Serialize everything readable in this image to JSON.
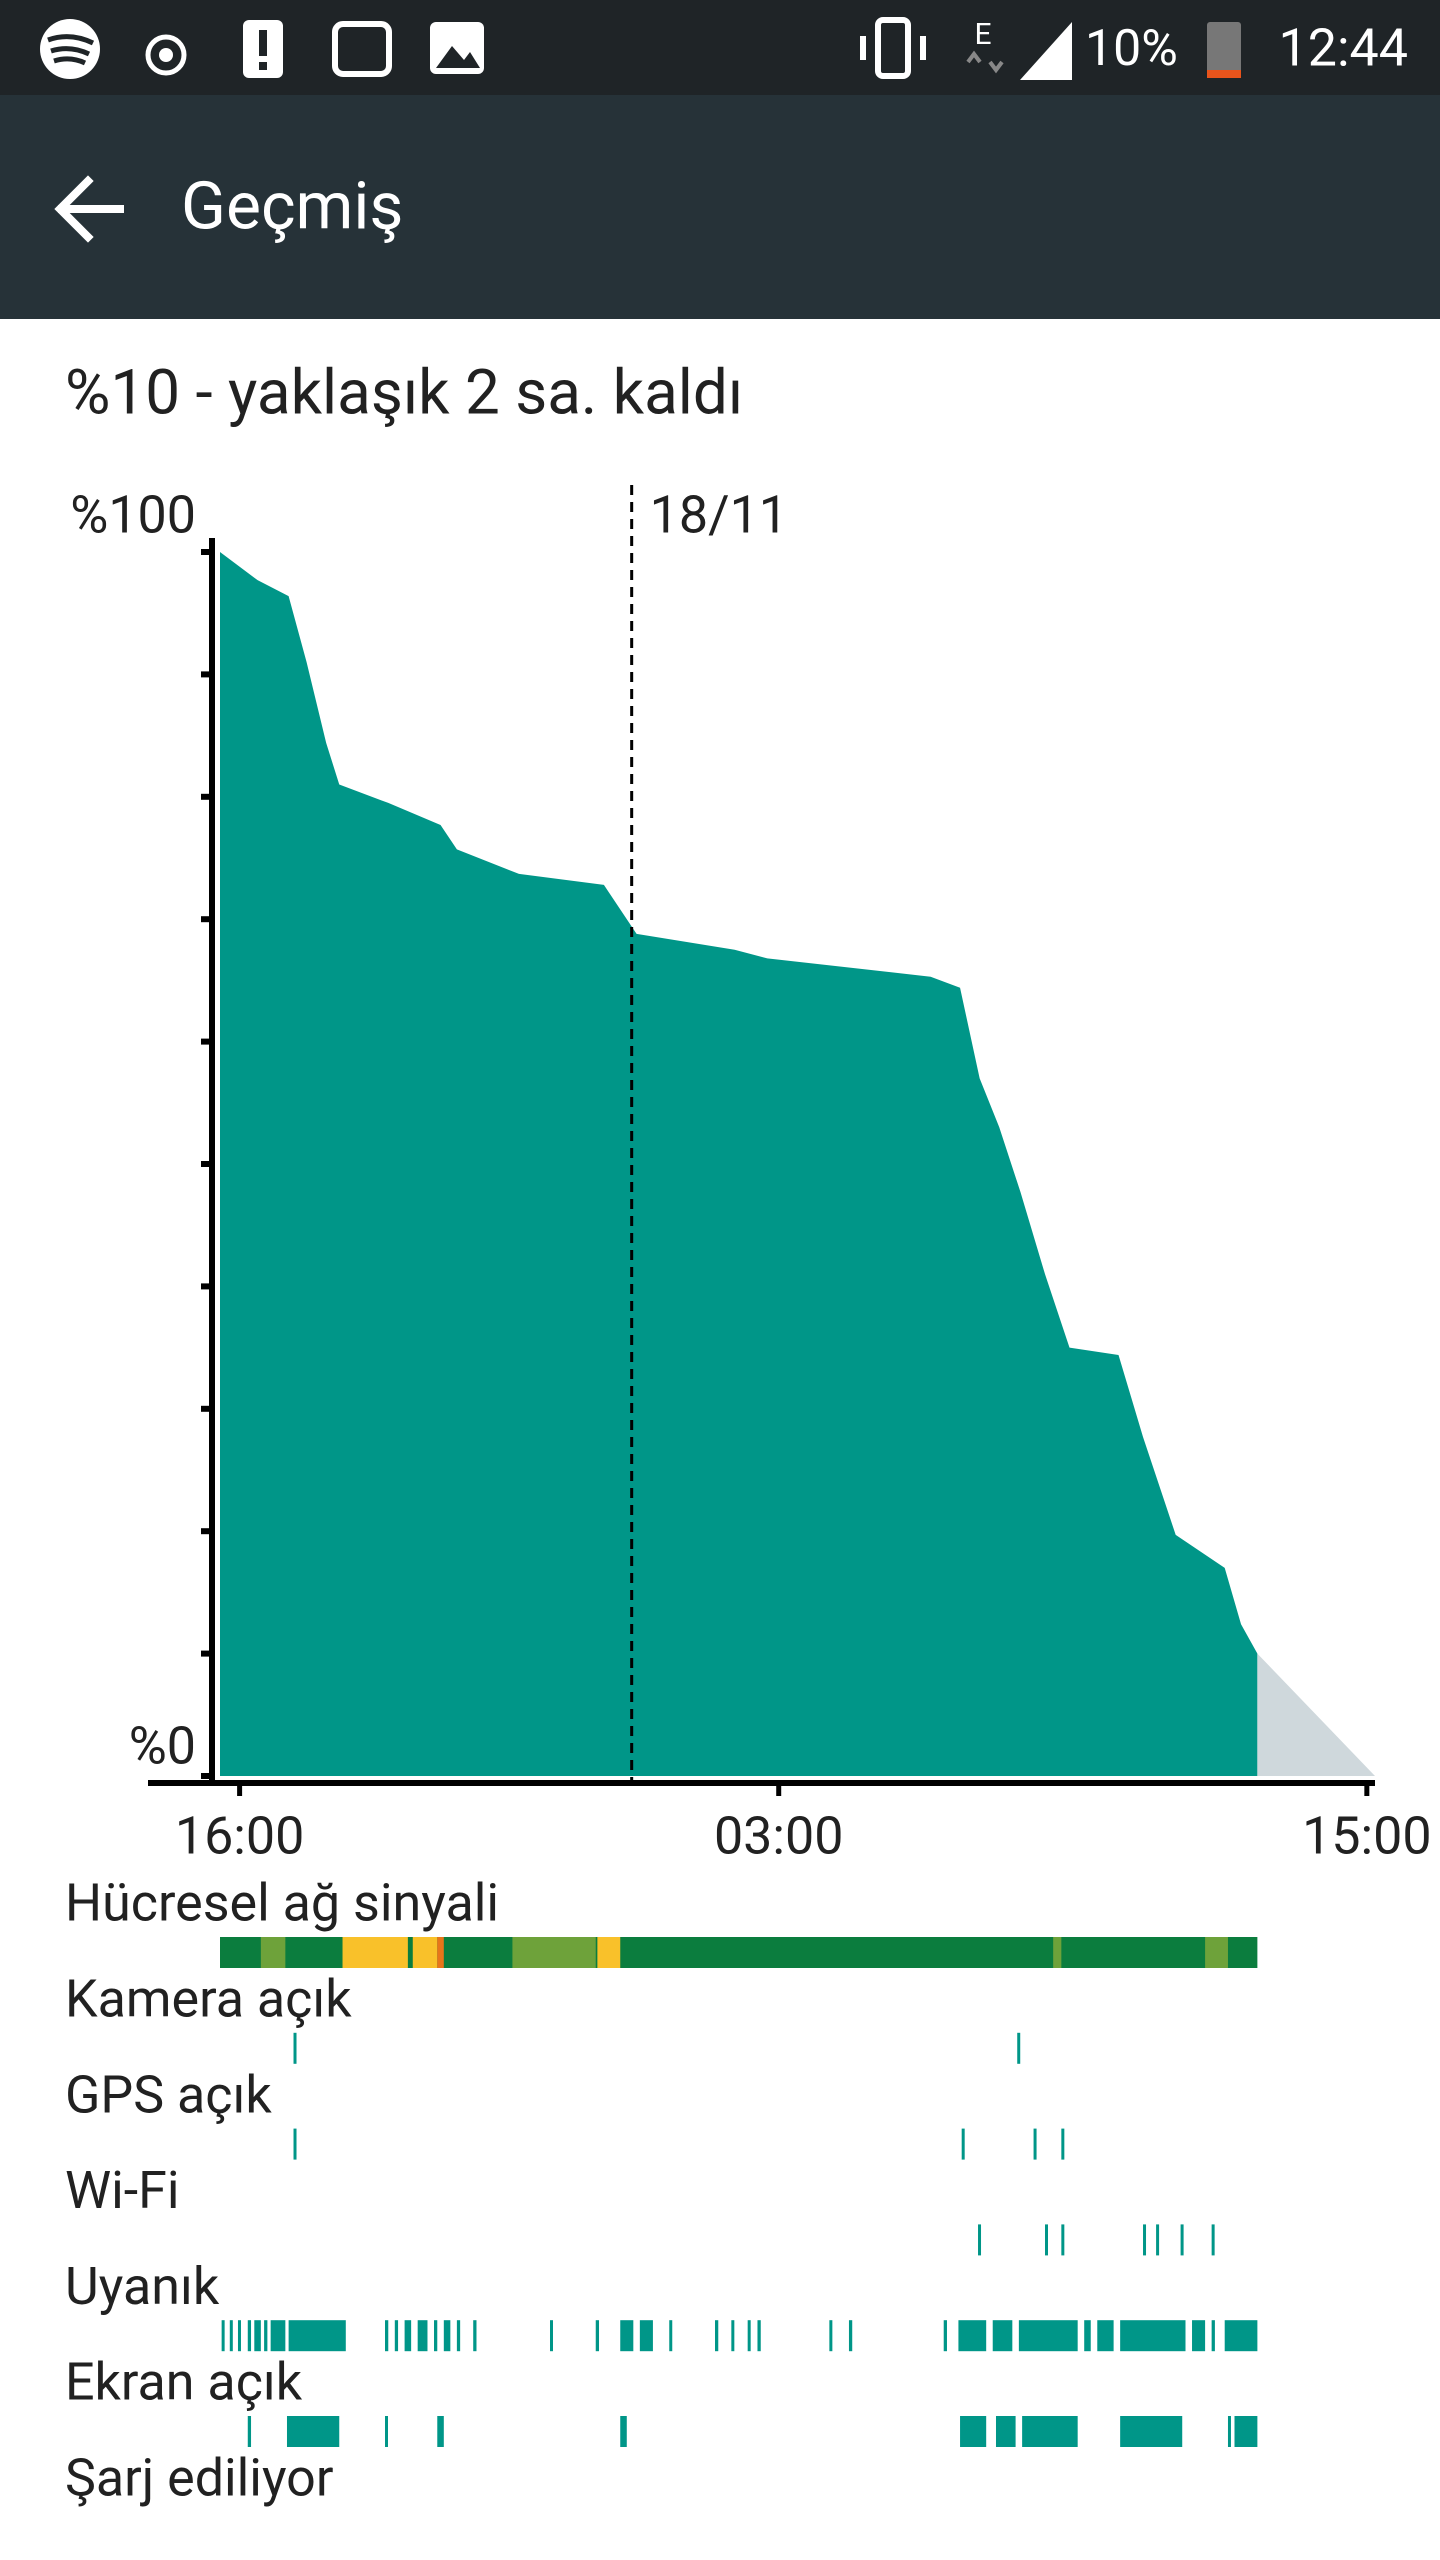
{
  "status_bar": {
    "network": "E",
    "battery": "10%",
    "time": "12:44"
  },
  "app_bar": {
    "title": "Geçmiş"
  },
  "summary": "%10 - yaklaşık 2 sa. kaldı",
  "chart_data": {
    "type": "area",
    "color": "#009688",
    "x": [
      "15:36",
      "16:22",
      "17:00",
      "17:22",
      "17:46",
      "18:02",
      "19:02",
      "20:06",
      "20:26",
      "21:42",
      "23:26",
      "00:06",
      "02:06",
      "02:46",
      "06:06",
      "06:42",
      "07:06",
      "07:30",
      "07:56",
      "08:26",
      "08:56",
      "09:56",
      "10:26",
      "11:06",
      "12:06",
      "12:26",
      "12:46"
    ],
    "values": [
      100,
      97.7,
      96.4,
      91,
      84.4,
      81,
      79.5,
      77.7,
      75.7,
      73.7,
      72.8,
      68.8,
      67.5,
      66.8,
      65.3,
      64.4,
      57,
      53,
      47.7,
      41,
      35,
      34.4,
      27.7,
      19.7,
      17,
      12.4,
      10
    ],
    "prediction": {
      "color": "#cfd8dc",
      "x": [
        "12:46",
        "15:10"
      ],
      "values": [
        10,
        0
      ]
    },
    "xlim": [
      "15:36",
      "15:10"
    ],
    "xticks": [
      "16:00",
      "03:00",
      "15:00"
    ],
    "ylim": [
      0,
      100
    ],
    "yticks": [
      {
        "value": 0,
        "label": "%0"
      },
      {
        "value": 10,
        "label": null
      },
      {
        "value": 20,
        "label": null
      },
      {
        "value": 30,
        "label": null
      },
      {
        "value": 40,
        "label": null
      },
      {
        "value": 50,
        "label": null
      },
      {
        "value": 60,
        "label": null
      },
      {
        "value": 70,
        "label": null
      },
      {
        "value": 80,
        "label": null
      },
      {
        "value": 90,
        "label": null
      },
      {
        "value": 100,
        "label": "%100"
      }
    ],
    "annotations": [
      {
        "text": "18/11",
        "x": "00:00"
      }
    ]
  },
  "activity_rows": [
    {
      "label": "Hücresel ağ sinyali",
      "segments": [
        {
          "start": "15:36",
          "end": "12:46",
          "color": "#0b7d3e"
        },
        {
          "start": "16:26",
          "end": "16:56",
          "color": "#6ea23a"
        },
        {
          "start": "18:06",
          "end": "19:26",
          "color": "#f9c12a"
        },
        {
          "start": "19:32",
          "end": "20:02",
          "color": "#f9c12a"
        },
        {
          "start": "20:02",
          "end": "20:10",
          "color": "#e8751a"
        },
        {
          "start": "21:34",
          "end": "23:16",
          "color": "#6ea23a"
        },
        {
          "start": "23:18",
          "end": "23:46",
          "color": "#f9c12a"
        },
        {
          "start": "08:36",
          "end": "08:46",
          "color": "#6ea23a"
        },
        {
          "start": "11:42",
          "end": "12:10",
          "color": "#6ea23a"
        }
      ]
    },
    {
      "label": "Kamera açık",
      "segments": [
        {
          "start": "17:06",
          "end": "17:06"
        },
        {
          "start": "07:52",
          "end": "07:52"
        }
      ]
    },
    {
      "label": "GPS açık",
      "segments": [
        {
          "start": "17:06",
          "end": "17:06"
        },
        {
          "start": "06:44",
          "end": "06:44"
        },
        {
          "start": "08:12",
          "end": "08:12"
        },
        {
          "start": "08:46",
          "end": "08:46"
        }
      ]
    },
    {
      "label": "Wi-Fi",
      "segments": [
        {
          "start": "07:04",
          "end": "07:04"
        },
        {
          "start": "08:26",
          "end": "08:26"
        },
        {
          "start": "08:46",
          "end": "08:46"
        },
        {
          "start": "10:26",
          "end": "10:26"
        },
        {
          "start": "10:42",
          "end": "10:42"
        },
        {
          "start": "11:12",
          "end": "11:12"
        },
        {
          "start": "11:50",
          "end": "11:50"
        }
      ]
    },
    {
      "label": "Uyanık",
      "segments": [
        {
          "start": "15:38",
          "end": "15:40"
        },
        {
          "start": "15:48",
          "end": "15:50"
        },
        {
          "start": "15:58",
          "end": "16:00"
        },
        {
          "start": "16:10",
          "end": "16:14"
        },
        {
          "start": "16:18",
          "end": "16:26"
        },
        {
          "start": "16:30",
          "end": "16:34"
        },
        {
          "start": "16:38",
          "end": "16:56"
        },
        {
          "start": "17:00",
          "end": "18:10"
        },
        {
          "start": "18:58",
          "end": "19:02"
        },
        {
          "start": "19:10",
          "end": "19:14"
        },
        {
          "start": "19:22",
          "end": "19:30"
        },
        {
          "start": "19:38",
          "end": "19:50"
        },
        {
          "start": "19:58",
          "end": "20:02"
        },
        {
          "start": "20:10",
          "end": "20:18"
        },
        {
          "start": "20:26",
          "end": "20:30"
        },
        {
          "start": "20:46",
          "end": "20:50"
        },
        {
          "start": "22:20",
          "end": "22:22"
        },
        {
          "start": "23:16",
          "end": "23:20"
        },
        {
          "start": "23:46",
          "end": "00:02"
        },
        {
          "start": "00:10",
          "end": "00:26"
        },
        {
          "start": "00:46",
          "end": "00:48"
        },
        {
          "start": "01:42",
          "end": "01:46"
        },
        {
          "start": "02:02",
          "end": "02:04"
        },
        {
          "start": "02:22",
          "end": "02:24"
        },
        {
          "start": "02:34",
          "end": "02:38"
        },
        {
          "start": "04:02",
          "end": "04:04"
        },
        {
          "start": "04:26",
          "end": "04:30"
        },
        {
          "start": "06:22",
          "end": "06:26"
        },
        {
          "start": "06:40",
          "end": "07:14"
        },
        {
          "start": "07:22",
          "end": "07:46"
        },
        {
          "start": "07:54",
          "end": "09:06"
        },
        {
          "start": "09:14",
          "end": "09:22"
        },
        {
          "start": "09:30",
          "end": "09:50"
        },
        {
          "start": "09:58",
          "end": "11:18"
        },
        {
          "start": "11:26",
          "end": "11:42"
        },
        {
          "start": "11:50",
          "end": "11:54"
        },
        {
          "start": "12:06",
          "end": "12:46"
        }
      ]
    },
    {
      "label": "Ekran açık",
      "segments": [
        {
          "start": "16:10",
          "end": "16:14"
        },
        {
          "start": "16:58",
          "end": "18:02"
        },
        {
          "start": "18:58",
          "end": "19:00"
        },
        {
          "start": "20:02",
          "end": "20:10"
        },
        {
          "start": "23:46",
          "end": "23:54"
        },
        {
          "start": "06:42",
          "end": "07:14"
        },
        {
          "start": "07:26",
          "end": "07:50"
        },
        {
          "start": "07:58",
          "end": "09:06"
        },
        {
          "start": "09:58",
          "end": "11:14"
        },
        {
          "start": "12:10",
          "end": "12:12"
        },
        {
          "start": "12:18",
          "end": "12:46"
        }
      ]
    },
    {
      "label": "Şarj ediliyor",
      "segments": []
    }
  ]
}
